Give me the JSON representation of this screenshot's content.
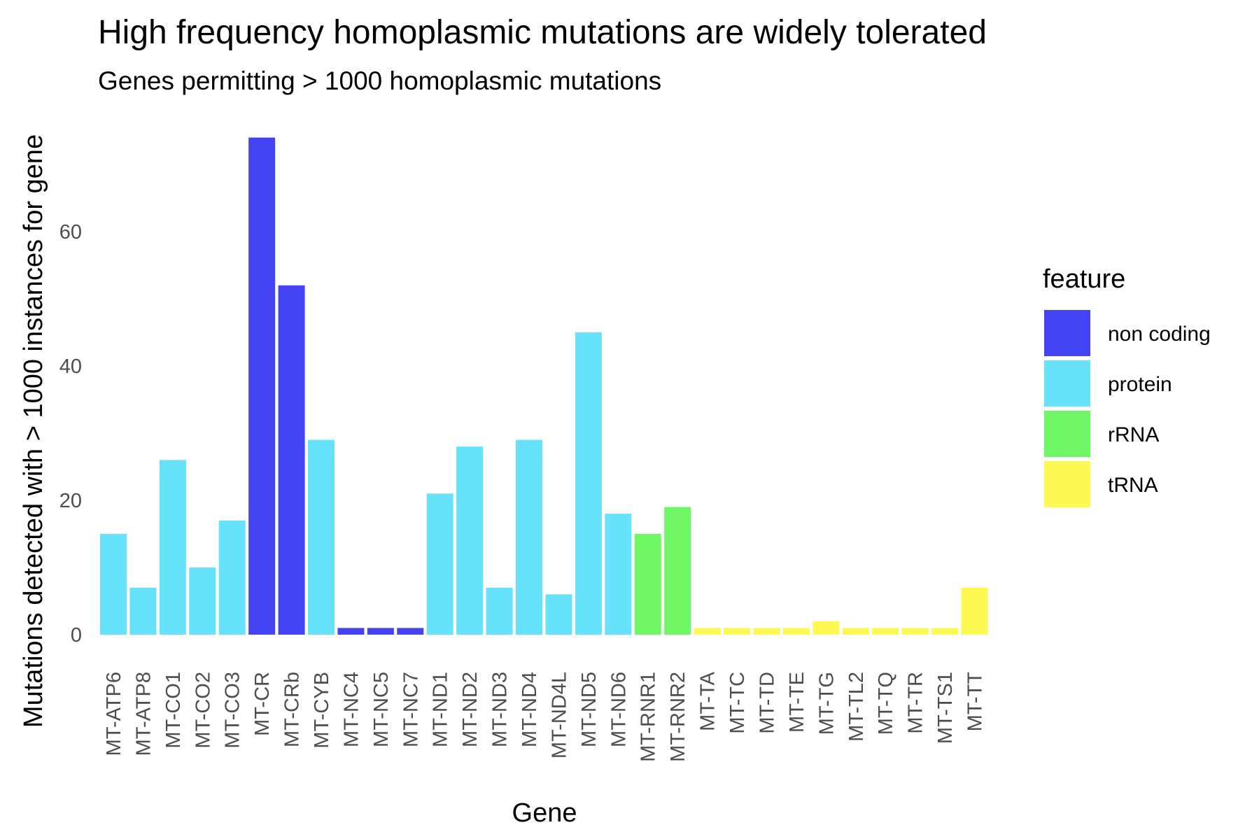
{
  "chart_data": {
    "type": "bar",
    "title": "High frequency homoplasmic mutations are widely tolerated",
    "subtitle": "Genes permitting > 1000 homoplasmic mutations",
    "xlabel": "Gene",
    "ylabel": "Mutations detected with > 1000 instances for gene",
    "ylim": [
      0,
      80
    ],
    "yticks": [
      0,
      20,
      40,
      60
    ],
    "grid": false,
    "legend": {
      "title": "feature",
      "placement": "right",
      "entries": [
        {
          "name": "non coding",
          "color": "#4444f5"
        },
        {
          "name": "protein",
          "color": "#66e2fa"
        },
        {
          "name": "rRNA",
          "color": "#6ff766"
        },
        {
          "name": "tRNA",
          "color": "#fef952"
        }
      ]
    },
    "categories": [
      "MT-ATP6",
      "MT-ATP8",
      "MT-CO1",
      "MT-CO2",
      "MT-CO3",
      "MT-CR",
      "MT-CRb",
      "MT-CYB",
      "MT-NC4",
      "MT-NC5",
      "MT-NC7",
      "MT-ND1",
      "MT-ND2",
      "MT-ND3",
      "MT-ND4",
      "MT-ND4L",
      "MT-ND5",
      "MT-ND6",
      "MT-RNR1",
      "MT-RNR2",
      "MT-TA",
      "MT-TC",
      "MT-TD",
      "MT-TE",
      "MT-TG",
      "MT-TL2",
      "MT-TQ",
      "MT-TR",
      "MT-TS1",
      "MT-TT"
    ],
    "values": [
      15,
      7,
      26,
      10,
      17,
      74,
      52,
      29,
      1,
      1,
      1,
      21,
      28,
      7,
      29,
      6,
      45,
      18,
      15,
      19,
      1,
      1,
      1,
      1,
      2,
      1,
      1,
      1,
      1,
      7
    ],
    "features": [
      "protein",
      "protein",
      "protein",
      "protein",
      "protein",
      "non coding",
      "non coding",
      "protein",
      "non coding",
      "non coding",
      "non coding",
      "protein",
      "protein",
      "protein",
      "protein",
      "protein",
      "protein",
      "protein",
      "rRNA",
      "rRNA",
      "tRNA",
      "tRNA",
      "tRNA",
      "tRNA",
      "tRNA",
      "tRNA",
      "tRNA",
      "tRNA",
      "tRNA",
      "tRNA"
    ]
  }
}
